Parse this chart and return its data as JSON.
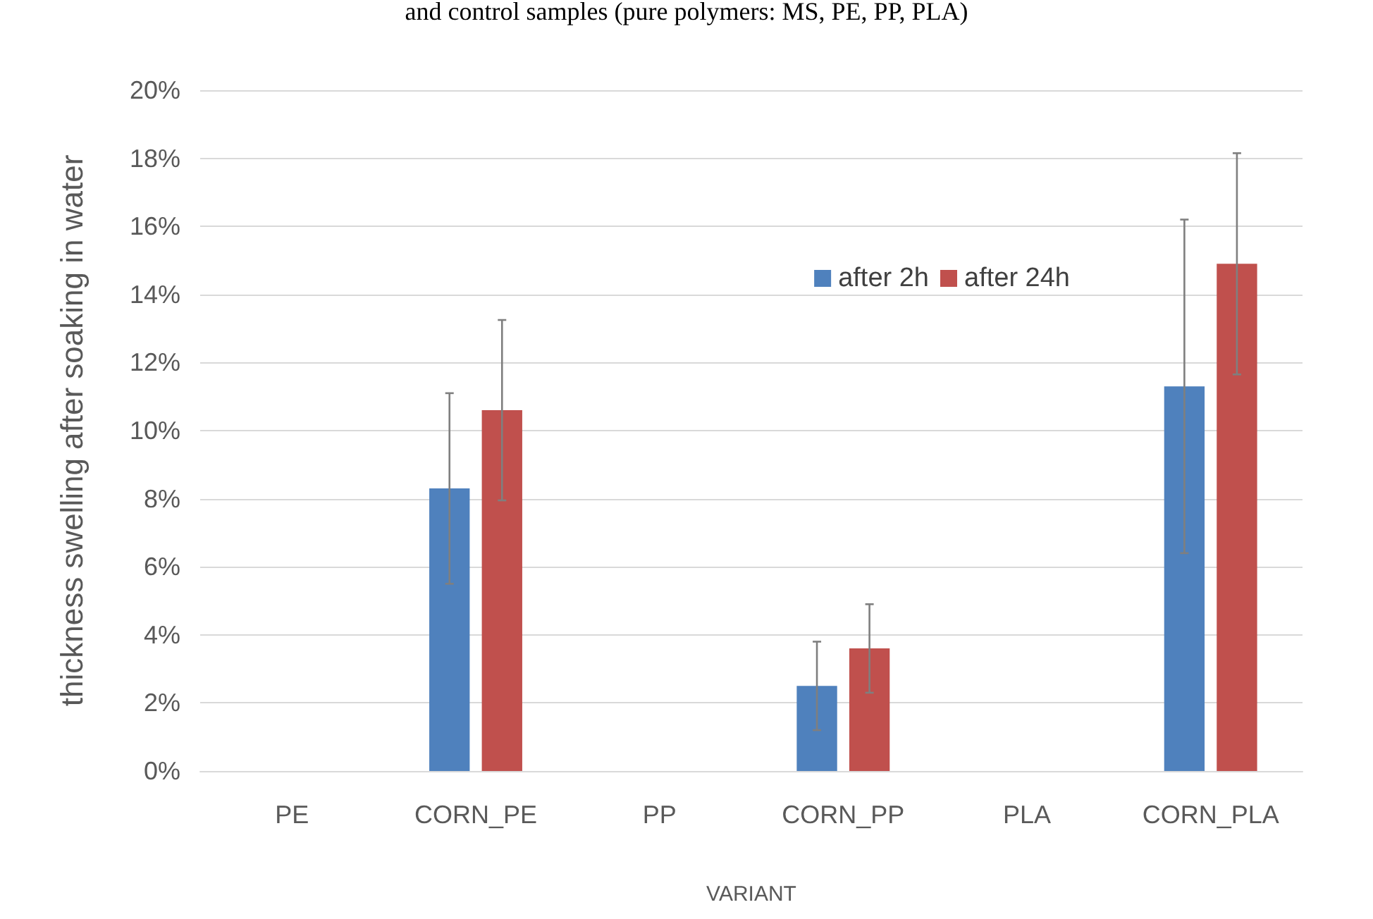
{
  "chart_data": {
    "type": "bar",
    "title": "and control samples (pure polymers: MS, PE, PP, PLA)",
    "xlabel": "VARIANT",
    "ylabel": "thickness swelling after soaking in water",
    "categories": [
      "PE",
      "CORN_PE",
      "PP",
      "CORN_PP",
      "PLA",
      "CORN_PLA"
    ],
    "series": [
      {
        "name": "after 2h",
        "color": "#4f81bd",
        "values": [
          null,
          8.3,
          null,
          2.5,
          null,
          11.3
        ],
        "errors": [
          null,
          2.8,
          null,
          1.3,
          null,
          4.9
        ]
      },
      {
        "name": "after 24h",
        "color": "#c0504d",
        "values": [
          null,
          10.6,
          null,
          3.6,
          null,
          14.9
        ],
        "errors": [
          null,
          2.65,
          null,
          1.3,
          null,
          3.25
        ]
      }
    ],
    "ylim": [
      0,
      20
    ],
    "yticks": [
      {
        "value": 0,
        "label": "0%"
      },
      {
        "value": 2,
        "label": "2%"
      },
      {
        "value": 4,
        "label": "4%"
      },
      {
        "value": 6,
        "label": "6%"
      },
      {
        "value": 8,
        "label": "8%"
      },
      {
        "value": 10,
        "label": "10%"
      },
      {
        "value": 12,
        "label": "12%"
      },
      {
        "value": 14,
        "label": "14%"
      },
      {
        "value": 16,
        "label": "16%"
      },
      {
        "value": 18,
        "label": "18%"
      },
      {
        "value": 20,
        "label": "20%"
      }
    ],
    "grid": "y",
    "legend": "top right"
  }
}
